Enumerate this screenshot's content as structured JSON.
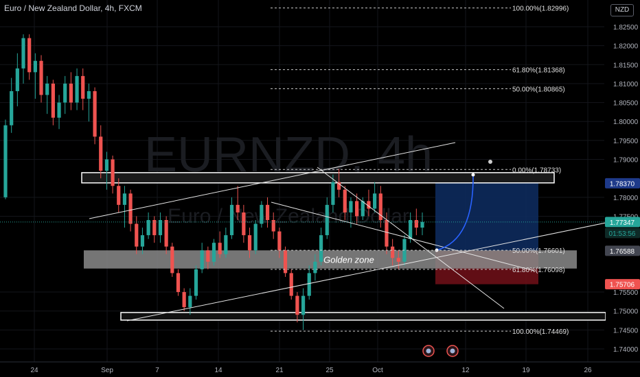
{
  "header": {
    "title": "Euro / New Zealand Dollar, 4h, FXCM",
    "currency_button": "NZD"
  },
  "watermark": {
    "symbol": "EURNZD, 4h",
    "name": "Euro / New Zealand Dollar"
  },
  "colors": {
    "background": "#000000",
    "bull_candle": "#26a69a",
    "bear_candle": "#ef5350",
    "long_target_zone": "#0d2a5c",
    "long_stop_zone": "#6b1017",
    "golden_zone": "#8a8a8a",
    "current_price_badge": "#26a69a",
    "stop_price_badge": "#ef5350",
    "target_price_badge": "#1e3a8a"
  },
  "chart_data": {
    "type": "candlestick",
    "symbol": "EURNZD",
    "timeframe": "4h",
    "source": "FXCM",
    "y_axis": {
      "range": [
        1.737,
        1.8335
      ],
      "ticks": [
        "1.82500",
        "1.82000",
        "1.81500",
        "1.81000",
        "1.80500",
        "1.80000",
        "1.79500",
        "1.79000",
        "1.78000",
        "1.77500",
        "1.75500",
        "1.75000",
        "1.74500",
        "1.74000"
      ]
    },
    "x_axis": {
      "ticks": [
        "24",
        "Sep",
        "7",
        "14",
        "21",
        "25",
        "Oct",
        "12",
        "19",
        "26"
      ]
    },
    "price_labels": {
      "target": "1.78370",
      "current": "1.77347",
      "countdown": "01:53:56",
      "entry": "1.76588",
      "stop": "1.75706"
    },
    "fibonacci_levels": [
      {
        "label": "100.00%(1.82996)",
        "price": 1.82996
      },
      {
        "label": "61.80%(1.81368)",
        "price": 1.81368
      },
      {
        "label": "50.00%(1.80865)",
        "price": 1.80865
      },
      {
        "label": "0.00%(1.78733)",
        "price": 1.78733
      },
      {
        "label": "50.00%(1.76601)",
        "price": 1.76601
      },
      {
        "label": "61.80%(1.76098)",
        "price": 1.76098
      },
      {
        "label": "100.00%(1.74469)",
        "price": 1.74469
      }
    ],
    "zones": {
      "golden_zone_label": "Golden zone",
      "golden_zone_price_range": [
        1.7612,
        1.766
      ],
      "resistance_box_price_range": [
        1.7838,
        1.7865
      ],
      "support_box_price_range": [
        1.7476,
        1.7496
      ]
    },
    "position": {
      "type": "long",
      "entry": 1.76588,
      "target": 1.7837,
      "stop": 1.75706
    },
    "candles": [
      [
        1.78,
        1.8005,
        1.7795,
        1.799
      ],
      [
        1.799,
        1.8115,
        1.797,
        1.808
      ],
      [
        1.808,
        1.818,
        1.804,
        1.814
      ],
      [
        1.814,
        1.823,
        1.81,
        1.822
      ],
      [
        1.822,
        1.823,
        1.811,
        1.813
      ],
      [
        1.813,
        1.818,
        1.806,
        1.816
      ],
      [
        1.816,
        1.8175,
        1.805,
        1.807
      ],
      [
        1.807,
        1.812,
        1.802,
        1.81
      ],
      [
        1.81,
        1.811,
        1.799,
        1.801
      ],
      [
        1.801,
        1.807,
        1.798,
        1.805
      ],
      [
        1.805,
        1.812,
        1.802,
        1.81
      ],
      [
        1.81,
        1.813,
        1.803,
        1.805
      ],
      [
        1.805,
        1.814,
        1.803,
        1.812
      ],
      [
        1.812,
        1.814,
        1.803,
        1.806
      ],
      [
        1.806,
        1.81,
        1.8,
        1.808
      ],
      [
        1.808,
        1.809,
        1.794,
        1.796
      ],
      [
        1.796,
        1.799,
        1.785,
        1.787
      ],
      [
        1.787,
        1.792,
        1.782,
        1.79
      ],
      [
        1.79,
        1.791,
        1.781,
        1.783
      ],
      [
        1.783,
        1.785,
        1.776,
        1.778
      ],
      [
        1.778,
        1.783,
        1.772,
        1.781
      ],
      [
        1.781,
        1.782,
        1.771,
        1.773
      ],
      [
        1.773,
        1.775,
        1.765,
        1.767
      ],
      [
        1.767,
        1.772,
        1.765,
        1.77
      ],
      [
        1.77,
        1.776,
        1.769,
        1.774
      ],
      [
        1.774,
        1.775,
        1.768,
        1.77
      ],
      [
        1.77,
        1.776,
        1.768,
        1.774
      ],
      [
        1.774,
        1.775,
        1.765,
        1.767
      ],
      [
        1.767,
        1.768,
        1.759,
        1.76
      ],
      [
        1.76,
        1.761,
        1.754,
        1.755
      ],
      [
        1.755,
        1.756,
        1.75,
        1.751
      ],
      [
        1.751,
        1.756,
        1.749,
        1.754
      ],
      [
        1.754,
        1.762,
        1.753,
        1.761
      ],
      [
        1.761,
        1.768,
        1.76,
        1.766
      ],
      [
        1.766,
        1.767,
        1.761,
        1.763
      ],
      [
        1.763,
        1.769,
        1.762,
        1.768
      ],
      [
        1.768,
        1.771,
        1.764,
        1.765
      ],
      [
        1.765,
        1.772,
        1.764,
        1.77
      ],
      [
        1.77,
        1.78,
        1.769,
        1.778
      ],
      [
        1.778,
        1.783,
        1.774,
        1.776
      ],
      [
        1.776,
        1.778,
        1.768,
        1.77
      ],
      [
        1.77,
        1.772,
        1.764,
        1.766
      ],
      [
        1.766,
        1.774,
        1.765,
        1.773
      ],
      [
        1.773,
        1.779,
        1.772,
        1.778
      ],
      [
        1.778,
        1.78,
        1.772,
        1.774
      ],
      [
        1.774,
        1.776,
        1.769,
        1.771
      ],
      [
        1.771,
        1.772,
        1.764,
        1.766
      ],
      [
        1.766,
        1.767,
        1.759,
        1.76
      ],
      [
        1.76,
        1.761,
        1.753,
        1.754
      ],
      [
        1.754,
        1.755,
        1.747,
        1.749
      ],
      [
        1.749,
        1.756,
        1.745,
        1.754
      ],
      [
        1.754,
        1.762,
        1.753,
        1.76
      ],
      [
        1.76,
        1.765,
        1.758,
        1.763
      ],
      [
        1.763,
        1.772,
        1.762,
        1.77
      ],
      [
        1.77,
        1.78,
        1.769,
        1.778
      ],
      [
        1.778,
        1.786,
        1.776,
        1.784
      ],
      [
        1.784,
        1.7875,
        1.78,
        1.782
      ],
      [
        1.782,
        1.783,
        1.774,
        1.776
      ],
      [
        1.776,
        1.78,
        1.772,
        1.779
      ],
      [
        1.779,
        1.781,
        1.773,
        1.775
      ],
      [
        1.775,
        1.78,
        1.774,
        1.779
      ],
      [
        1.779,
        1.782,
        1.775,
        1.777
      ],
      [
        1.777,
        1.784,
        1.776,
        1.781
      ],
      [
        1.781,
        1.783,
        1.772,
        1.774
      ],
      [
        1.774,
        1.776,
        1.765,
        1.767
      ],
      [
        1.767,
        1.769,
        1.762,
        1.764
      ],
      [
        1.764,
        1.766,
        1.761,
        1.763
      ],
      [
        1.763,
        1.77,
        1.762,
        1.769
      ],
      [
        1.769,
        1.776,
        1.768,
        1.774
      ],
      [
        1.774,
        1.777,
        1.77,
        1.772
      ],
      [
        1.772,
        1.776,
        1.77,
        1.7735
      ]
    ]
  }
}
